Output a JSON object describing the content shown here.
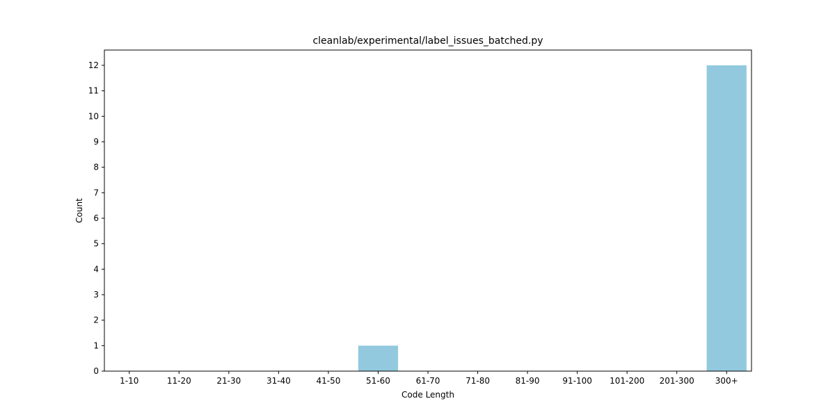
{
  "chart_data": {
    "type": "bar",
    "title": "cleanlab/experimental/label_issues_batched.py",
    "xlabel": "Code Length",
    "ylabel": "Count",
    "categories": [
      "1-10",
      "11-20",
      "21-30",
      "31-40",
      "41-50",
      "51-60",
      "61-70",
      "71-80",
      "81-90",
      "91-100",
      "101-200",
      "201-300",
      "300+"
    ],
    "values": [
      0,
      0,
      0,
      0,
      0,
      1,
      0,
      0,
      0,
      0,
      0,
      0,
      12
    ],
    "yticks": [
      0,
      1,
      2,
      3,
      4,
      5,
      6,
      7,
      8,
      9,
      10,
      11,
      12
    ],
    "ylim": [
      0,
      12.6
    ],
    "bar_color": "#92c9de",
    "grid": false,
    "legend": "none"
  }
}
